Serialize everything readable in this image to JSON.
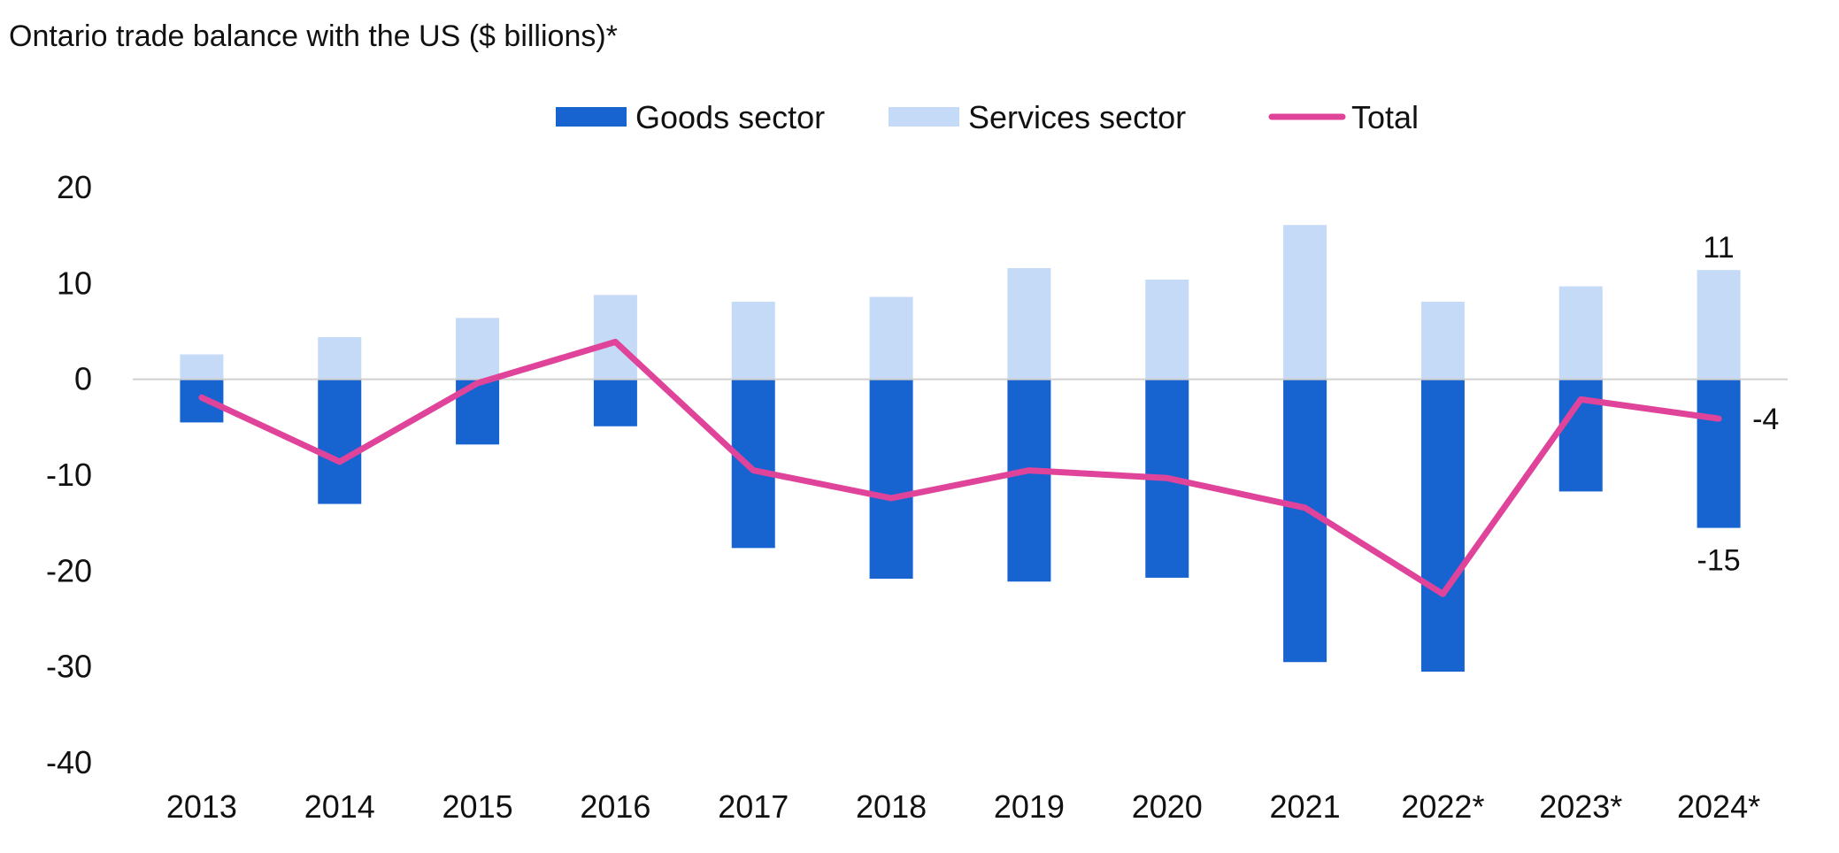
{
  "chart_data": {
    "type": "bar",
    "title": "Ontario trade balance with the US ($ billions)*",
    "categories": [
      "2013",
      "2014",
      "2015",
      "2016",
      "2017",
      "2018",
      "2019",
      "2020",
      "2021",
      "2022*",
      "2023*",
      "2024*"
    ],
    "ylim": [
      -40,
      20
    ],
    "yticks": [
      20,
      10,
      0,
      -10,
      -20,
      -30,
      -40
    ],
    "grid": false,
    "legend_position": "top-center",
    "stacked": true,
    "series": [
      {
        "name": "Goods sector",
        "type": "bar",
        "color": "#1764d1",
        "values": [
          -4.5,
          -13,
          -6.8,
          -4.9,
          -17.6,
          -20.8,
          -21.1,
          -20.7,
          -29.5,
          -30.5,
          -11.7,
          -15.5
        ]
      },
      {
        "name": "Services sector",
        "type": "bar",
        "color": "#c5daf6",
        "values": [
          2.6,
          4.4,
          6.4,
          8.8,
          8.1,
          8.6,
          11.6,
          10.4,
          16.1,
          8.1,
          9.7,
          11.4
        ]
      },
      {
        "name": "Total",
        "type": "line",
        "color": "#e0449a",
        "values": [
          -1.9,
          -8.6,
          -0.4,
          3.9,
          -9.5,
          -12.4,
          -9.5,
          -10.3,
          -13.4,
          -22.4,
          -2.1,
          -4.1
        ]
      }
    ],
    "annotations": [
      {
        "text": "11",
        "category": "2024*",
        "series": "Services sector",
        "position": "above"
      },
      {
        "text": "-4",
        "category": "2024*",
        "series": "Total",
        "position": "right"
      },
      {
        "text": "-15",
        "category": "2024*",
        "series": "Goods sector",
        "position": "below"
      }
    ]
  }
}
